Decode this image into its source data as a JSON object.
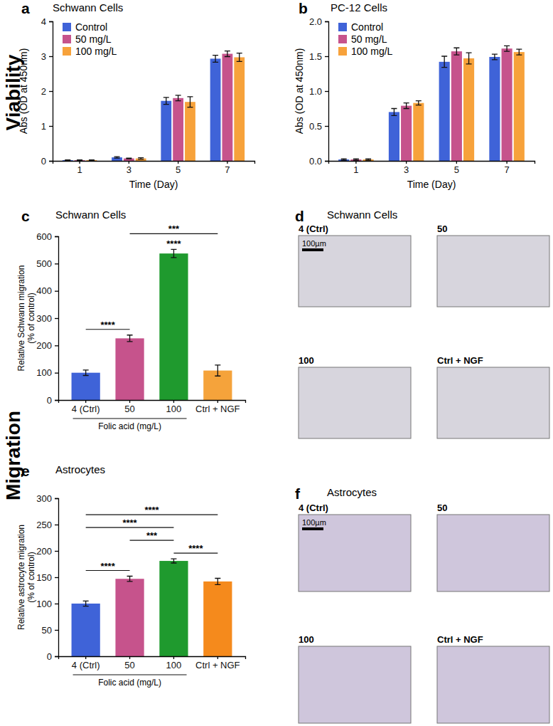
{
  "chart_data": [
    {
      "type": "bar",
      "panel": "a",
      "title": "Schwann Cells",
      "x_label": "Time (Day)",
      "y_label": "Abs (OD at 450nm)",
      "categories": [
        1,
        3,
        5,
        7
      ],
      "series": [
        {
          "name": "Control",
          "color": "#3f63d8",
          "values": [
            0.02,
            0.1,
            1.72,
            2.93
          ],
          "errors": [
            0.01,
            0.02,
            0.1,
            0.1
          ]
        },
        {
          "name": "50 mg/L",
          "color": "#c6538c",
          "values": [
            0.02,
            0.07,
            1.8,
            3.07
          ],
          "errors": [
            0.01,
            0.01,
            0.08,
            0.08
          ]
        },
        {
          "name": "100 mg/L",
          "color": "#f7a23b",
          "values": [
            0.02,
            0.07,
            1.69,
            2.97
          ],
          "errors": [
            0.01,
            0.02,
            0.15,
            0.12
          ]
        }
      ],
      "ylim": [
        0,
        4
      ],
      "yticks": [
        0,
        1,
        2,
        3,
        4
      ],
      "legend": "top-left"
    },
    {
      "type": "bar",
      "panel": "b",
      "title": "PC-12 Cells",
      "x_label": "Time (Day)",
      "y_label": "Abs (OD at 450nm)",
      "categories": [
        1,
        3,
        5,
        7
      ],
      "series": [
        {
          "name": "Control",
          "color": "#3f63d8",
          "values": [
            0.02,
            0.7,
            1.42,
            1.49
          ],
          "errors": [
            0.01,
            0.05,
            0.08,
            0.04
          ]
        },
        {
          "name": "50 mg/L",
          "color": "#c6538c",
          "values": [
            0.02,
            0.79,
            1.57,
            1.61
          ],
          "errors": [
            0.01,
            0.04,
            0.05,
            0.04
          ]
        },
        {
          "name": "100 mg/L",
          "color": "#f7a23b",
          "values": [
            0.02,
            0.83,
            1.47,
            1.56
          ],
          "errors": [
            0.01,
            0.03,
            0.08,
            0.04
          ]
        }
      ],
      "ylim": [
        0,
        2
      ],
      "yticks": [
        {
          "value": 0,
          "label": "0.0"
        },
        {
          "value": 0.5,
          "label": "0.5"
        },
        {
          "value": 1,
          "label": "1.0"
        },
        {
          "value": 1.5,
          "label": "1.5"
        },
        {
          "value": 2,
          "label": "2.0"
        }
      ],
      "legend": "top-left"
    },
    {
      "type": "bar",
      "panel": "c",
      "title": "Schwann Cells",
      "y_label": [
        "Relative Schwann migration",
        "(% of control)"
      ],
      "categories": [
        "4 (Ctrl)",
        "50",
        "100",
        "Ctrl + NGF"
      ],
      "values": [
        100,
        226,
        537,
        108
      ],
      "errors": [
        10,
        12,
        15,
        20
      ],
      "colors": [
        "#3f63d8",
        "#c6538c",
        "#1f9a2e",
        "#f5a33b"
      ],
      "group_label": {
        "text": "Folic acid (mg/L)",
        "categories": [
          "4 (Ctrl)",
          "50",
          "100"
        ]
      },
      "annotations": [
        {
          "text": "****",
          "above": "100"
        },
        {
          "text": "****",
          "between": [
            "4 (Ctrl)",
            "50"
          ]
        },
        {
          "text": "***",
          "between": [
            "50",
            "Ctrl + NGF"
          ]
        }
      ],
      "ylim": [
        0,
        600
      ],
      "yticks": [
        0,
        100,
        200,
        300,
        400,
        500,
        600
      ]
    },
    {
      "type": "bar",
      "panel": "e",
      "title": "Astrocytes",
      "y_label": [
        "Relative astrocyte migration",
        "(% of control)"
      ],
      "categories": [
        "4 (Ctrl)",
        "50",
        "100",
        "Ctrl + NGF"
      ],
      "values": [
        100,
        147,
        181,
        142
      ],
      "errors": [
        5,
        5,
        4,
        6
      ],
      "colors": [
        "#3f63d8",
        "#c6538c",
        "#1f9a2e",
        "#f58a1c"
      ],
      "group_label": {
        "text": "Folic acid (mg/L)",
        "categories": [
          "4 (Ctrl)",
          "50",
          "100"
        ]
      },
      "annotations": [
        {
          "text": "****",
          "between": [
            "4 (Ctrl)",
            "50"
          ]
        },
        {
          "text": "****",
          "between": [
            "100",
            "Ctrl + NGF"
          ]
        },
        {
          "text": "***",
          "between": [
            "50",
            "100"
          ]
        },
        {
          "text": "****",
          "between": [
            "4 (Ctrl)",
            "100"
          ]
        },
        {
          "text": "****",
          "between": [
            "4 (Ctrl)",
            "Ctrl + NGF"
          ]
        }
      ],
      "ylim": [
        0,
        300
      ],
      "yticks": [
        0,
        50,
        100,
        150,
        200,
        250,
        300
      ]
    }
  ],
  "row_labels": [
    "Viability",
    "Migration"
  ],
  "image_panels": [
    {
      "panel": "d",
      "title": "Schwann Cells",
      "labels": [
        "4 (Ctrl)",
        "50",
        "100",
        "Ctrl + NGF"
      ],
      "scale_bar": "100µm"
    },
    {
      "panel": "f",
      "title": "Astrocytes",
      "labels": [
        "4 (Ctrl)",
        "50",
        "100",
        "Ctrl + NGF"
      ],
      "scale_bar": "100µm"
    }
  ]
}
